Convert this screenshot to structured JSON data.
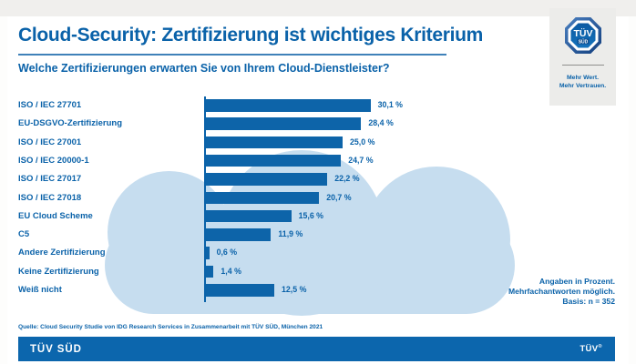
{
  "header": {
    "title": "Cloud-Security: Zertifizierung ist wichtiges Kriterium",
    "subtitle": "Welche Zertifizierungen erwarten Sie von Ihrem Cloud-Dienstleister?"
  },
  "logo": {
    "mark_main": "TÜV",
    "mark_sub": "SÜD",
    "tagline_line1": "Mehr Wert.",
    "tagline_line2": "Mehr Vertrauen."
  },
  "chart_data": {
    "type": "bar",
    "orientation": "horizontal",
    "title": "Welche Zertifizierungen erwarten Sie von Ihrem Cloud-Dienstleister?",
    "categories": [
      "ISO / IEC 27701",
      "EU-DSGVO-Zertifizierung",
      "ISO / IEC 27001",
      "ISO / IEC 20000-1",
      "ISO / IEC 27017",
      "ISO / IEC 27018",
      "EU Cloud Scheme",
      "C5",
      "Andere Zertifizierung",
      "Keine Zertifizierung",
      "Weiß nicht"
    ],
    "values": [
      30.1,
      28.4,
      25.0,
      24.7,
      22.2,
      20.7,
      15.6,
      11.9,
      0.6,
      1.4,
      12.5
    ],
    "value_labels": [
      "30,1 %",
      "28,4 %",
      "25,0 %",
      "24,7 %",
      "22,2 %",
      "20,7 %",
      "15,6 %",
      "11,9 %",
      "0,6 %",
      "1,4 %",
      "12,5 %"
    ],
    "unit": "percent",
    "xlim": [
      0,
      31
    ],
    "grid": false,
    "legend": false,
    "bar_color": "#0d64a9",
    "background_cloud_color": "#c6ddef"
  },
  "notes": {
    "line1": "Angaben in Prozent.",
    "line2": "Mehrfachantworten möglich.",
    "line3": "Basis: n = 352"
  },
  "source": "Quelle: Cloud Security Studie von IDG Research Services in Zusammenarbeit mit TÜV SÜD, München 2021",
  "footer": {
    "brand": "TÜV SÜD",
    "right_brand": "TÜV",
    "registered": "®"
  }
}
